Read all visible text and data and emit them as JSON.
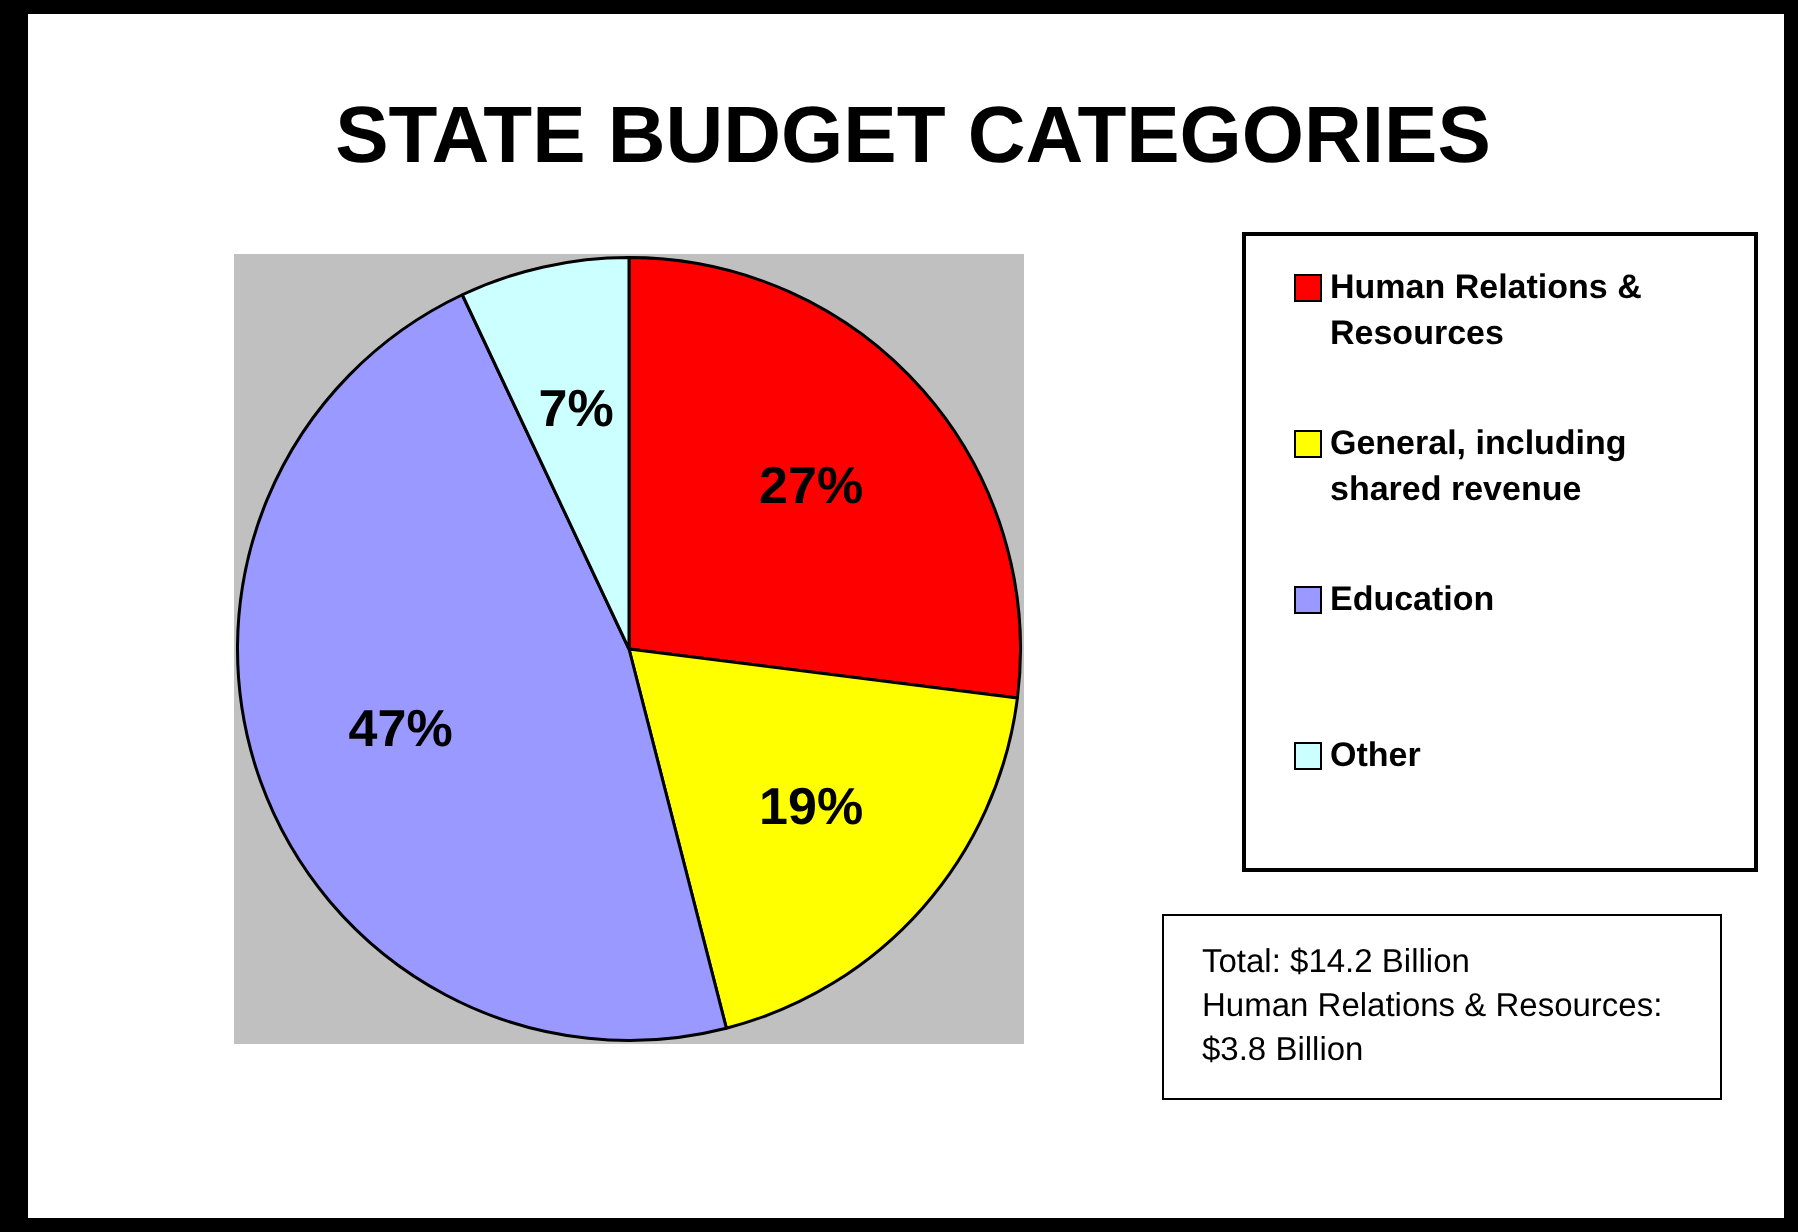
{
  "chart_data": {
    "type": "pie",
    "title": "STATE BUDGET CATEGORIES",
    "categories": [
      "Human Relations & Resources",
      "General, including shared revenue",
      "Education",
      "Other"
    ],
    "values": [
      27,
      19,
      47,
      7
    ],
    "colors": [
      "#ff0000",
      "#ffff00",
      "#9999ff",
      "#ccffff"
    ],
    "value_labels": [
      "27%",
      "19%",
      "47%",
      "7%"
    ],
    "legend": "right",
    "annotations": [
      "Total: $14.2 Billion",
      "Human Relations & Resources: $3.8 Billion"
    ]
  }
}
